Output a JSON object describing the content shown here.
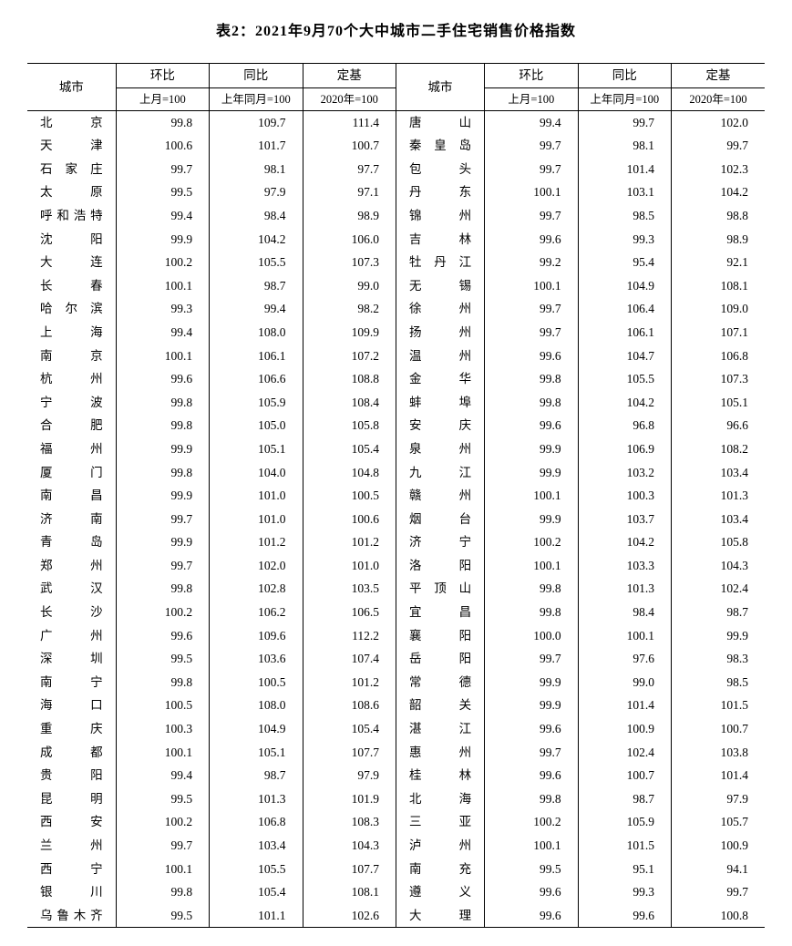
{
  "title": "表2：2021年9月70个大中城市二手住宅销售价格指数",
  "headers": {
    "city": "城市",
    "mom": "环比",
    "yoy": "同比",
    "base": "定基",
    "mom_sub": "上月=100",
    "yoy_sub": "上年同月=100",
    "base_sub": "2020年=100"
  },
  "left": [
    {
      "city": "北京",
      "mom": "99.8",
      "yoy": "109.7",
      "base": "111.4"
    },
    {
      "city": "天津",
      "mom": "100.6",
      "yoy": "101.7",
      "base": "100.7"
    },
    {
      "city": "石家庄",
      "mom": "99.7",
      "yoy": "98.1",
      "base": "97.7"
    },
    {
      "city": "太原",
      "mom": "99.5",
      "yoy": "97.9",
      "base": "97.1"
    },
    {
      "city": "呼和浩特",
      "mom": "99.4",
      "yoy": "98.4",
      "base": "98.9"
    },
    {
      "city": "沈阳",
      "mom": "99.9",
      "yoy": "104.2",
      "base": "106.0"
    },
    {
      "city": "大连",
      "mom": "100.2",
      "yoy": "105.5",
      "base": "107.3"
    },
    {
      "city": "长春",
      "mom": "100.1",
      "yoy": "98.7",
      "base": "99.0"
    },
    {
      "city": "哈尔滨",
      "mom": "99.3",
      "yoy": "99.4",
      "base": "98.2"
    },
    {
      "city": "上海",
      "mom": "99.4",
      "yoy": "108.0",
      "base": "109.9"
    },
    {
      "city": "南京",
      "mom": "100.1",
      "yoy": "106.1",
      "base": "107.2"
    },
    {
      "city": "杭州",
      "mom": "99.6",
      "yoy": "106.6",
      "base": "108.8"
    },
    {
      "city": "宁波",
      "mom": "99.8",
      "yoy": "105.9",
      "base": "108.4"
    },
    {
      "city": "合肥",
      "mom": "99.8",
      "yoy": "105.0",
      "base": "105.8"
    },
    {
      "city": "福州",
      "mom": "99.9",
      "yoy": "105.1",
      "base": "105.4"
    },
    {
      "city": "厦门",
      "mom": "99.8",
      "yoy": "104.0",
      "base": "104.8"
    },
    {
      "city": "南昌",
      "mom": "99.9",
      "yoy": "101.0",
      "base": "100.5"
    },
    {
      "city": "济南",
      "mom": "99.7",
      "yoy": "101.0",
      "base": "100.6"
    },
    {
      "city": "青岛",
      "mom": "99.9",
      "yoy": "101.2",
      "base": "101.2"
    },
    {
      "city": "郑州",
      "mom": "99.7",
      "yoy": "102.0",
      "base": "101.0"
    },
    {
      "city": "武汉",
      "mom": "99.8",
      "yoy": "102.8",
      "base": "103.5"
    },
    {
      "city": "长沙",
      "mom": "100.2",
      "yoy": "106.2",
      "base": "106.5"
    },
    {
      "city": "广州",
      "mom": "99.6",
      "yoy": "109.6",
      "base": "112.2"
    },
    {
      "city": "深圳",
      "mom": "99.5",
      "yoy": "103.6",
      "base": "107.4"
    },
    {
      "city": "南宁",
      "mom": "99.8",
      "yoy": "100.5",
      "base": "101.2"
    },
    {
      "city": "海口",
      "mom": "100.5",
      "yoy": "108.0",
      "base": "108.6"
    },
    {
      "city": "重庆",
      "mom": "100.3",
      "yoy": "104.9",
      "base": "105.4"
    },
    {
      "city": "成都",
      "mom": "100.1",
      "yoy": "105.1",
      "base": "107.7"
    },
    {
      "city": "贵阳",
      "mom": "99.4",
      "yoy": "98.7",
      "base": "97.9"
    },
    {
      "city": "昆明",
      "mom": "99.5",
      "yoy": "101.3",
      "base": "101.9"
    },
    {
      "city": "西安",
      "mom": "100.2",
      "yoy": "106.8",
      "base": "108.3"
    },
    {
      "city": "兰州",
      "mom": "99.7",
      "yoy": "103.4",
      "base": "104.3"
    },
    {
      "city": "西宁",
      "mom": "100.1",
      "yoy": "105.5",
      "base": "107.7"
    },
    {
      "city": "银川",
      "mom": "99.8",
      "yoy": "105.4",
      "base": "108.1"
    },
    {
      "city": "乌鲁木齐",
      "mom": "99.5",
      "yoy": "101.1",
      "base": "102.6"
    }
  ],
  "right": [
    {
      "city": "唐山",
      "mom": "99.4",
      "yoy": "99.7",
      "base": "102.0"
    },
    {
      "city": "秦皇岛",
      "mom": "99.7",
      "yoy": "98.1",
      "base": "99.7"
    },
    {
      "city": "包头",
      "mom": "99.7",
      "yoy": "101.4",
      "base": "102.3"
    },
    {
      "city": "丹东",
      "mom": "100.1",
      "yoy": "103.1",
      "base": "104.2"
    },
    {
      "city": "锦州",
      "mom": "99.7",
      "yoy": "98.5",
      "base": "98.8"
    },
    {
      "city": "吉林",
      "mom": "99.6",
      "yoy": "99.3",
      "base": "98.9"
    },
    {
      "city": "牡丹江",
      "mom": "99.2",
      "yoy": "95.4",
      "base": "92.1"
    },
    {
      "city": "无锡",
      "mom": "100.1",
      "yoy": "104.9",
      "base": "108.1"
    },
    {
      "city": "徐州",
      "mom": "99.7",
      "yoy": "106.4",
      "base": "109.0"
    },
    {
      "city": "扬州",
      "mom": "99.7",
      "yoy": "106.1",
      "base": "107.1"
    },
    {
      "city": "温州",
      "mom": "99.6",
      "yoy": "104.7",
      "base": "106.8"
    },
    {
      "city": "金华",
      "mom": "99.8",
      "yoy": "105.5",
      "base": "107.3"
    },
    {
      "city": "蚌埠",
      "mom": "99.8",
      "yoy": "104.2",
      "base": "105.1"
    },
    {
      "city": "安庆",
      "mom": "99.6",
      "yoy": "96.8",
      "base": "96.6"
    },
    {
      "city": "泉州",
      "mom": "99.9",
      "yoy": "106.9",
      "base": "108.2"
    },
    {
      "city": "九江",
      "mom": "99.9",
      "yoy": "103.2",
      "base": "103.4"
    },
    {
      "city": "赣州",
      "mom": "100.1",
      "yoy": "100.3",
      "base": "101.3"
    },
    {
      "city": "烟台",
      "mom": "99.9",
      "yoy": "103.7",
      "base": "103.4"
    },
    {
      "city": "济宁",
      "mom": "100.2",
      "yoy": "104.2",
      "base": "105.8"
    },
    {
      "city": "洛阳",
      "mom": "100.1",
      "yoy": "103.3",
      "base": "104.3"
    },
    {
      "city": "平顶山",
      "mom": "99.8",
      "yoy": "101.3",
      "base": "102.4"
    },
    {
      "city": "宜昌",
      "mom": "99.8",
      "yoy": "98.4",
      "base": "98.7"
    },
    {
      "city": "襄阳",
      "mom": "100.0",
      "yoy": "100.1",
      "base": "99.9"
    },
    {
      "city": "岳阳",
      "mom": "99.7",
      "yoy": "97.6",
      "base": "98.3"
    },
    {
      "city": "常德",
      "mom": "99.9",
      "yoy": "99.0",
      "base": "98.5"
    },
    {
      "city": "韶关",
      "mom": "99.9",
      "yoy": "101.4",
      "base": "101.5"
    },
    {
      "city": "湛江",
      "mom": "99.6",
      "yoy": "100.9",
      "base": "100.7"
    },
    {
      "city": "惠州",
      "mom": "99.7",
      "yoy": "102.4",
      "base": "103.8"
    },
    {
      "city": "桂林",
      "mom": "99.6",
      "yoy": "100.7",
      "base": "101.4"
    },
    {
      "city": "北海",
      "mom": "99.8",
      "yoy": "98.7",
      "base": "97.9"
    },
    {
      "city": "三亚",
      "mom": "100.2",
      "yoy": "105.9",
      "base": "105.7"
    },
    {
      "city": "泸州",
      "mom": "100.1",
      "yoy": "101.5",
      "base": "100.9"
    },
    {
      "city": "南充",
      "mom": "99.5",
      "yoy": "95.1",
      "base": "94.1"
    },
    {
      "city": "遵义",
      "mom": "99.6",
      "yoy": "99.3",
      "base": "99.7"
    },
    {
      "city": "大理",
      "mom": "99.6",
      "yoy": "99.6",
      "base": "100.8"
    }
  ]
}
